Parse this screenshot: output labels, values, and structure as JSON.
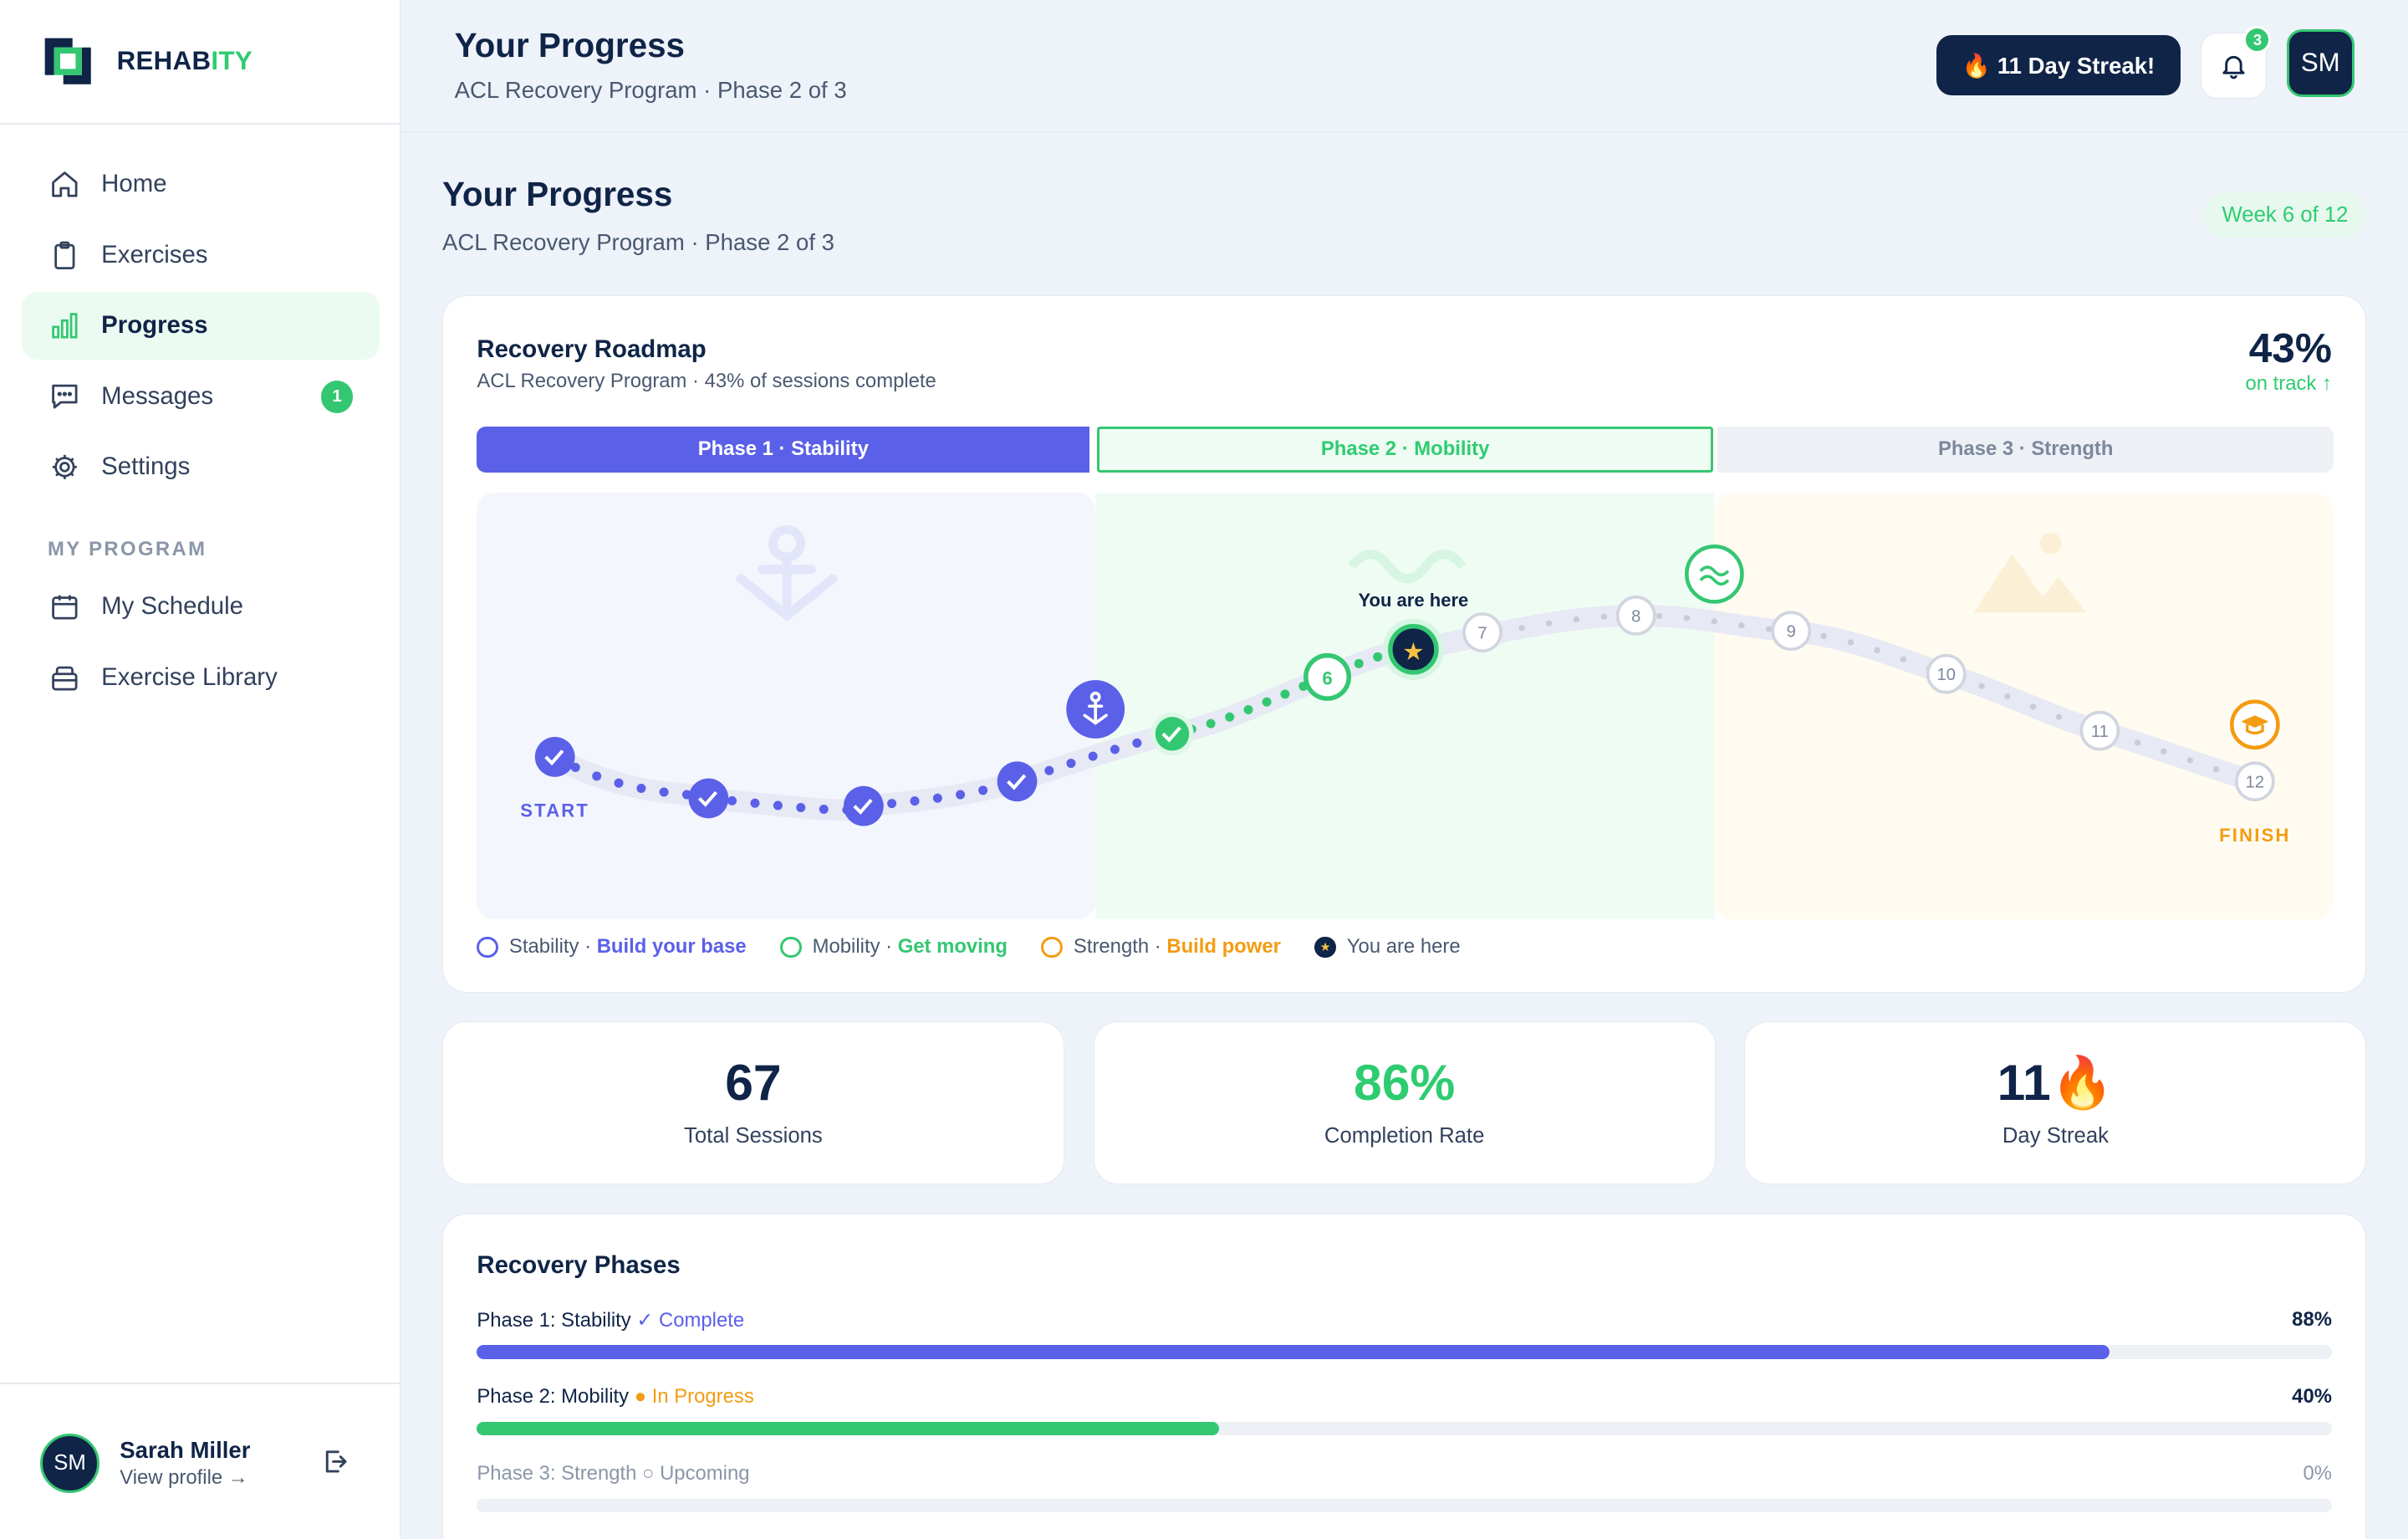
{
  "brand": {
    "name_part1": "REHAB",
    "name_part2": "ITY"
  },
  "sidebar": {
    "items": [
      {
        "label": "Home",
        "icon": "home-icon"
      },
      {
        "label": "Exercises",
        "icon": "clipboard-icon"
      },
      {
        "label": "Progress",
        "icon": "bar-chart-icon",
        "active": true
      },
      {
        "label": "Messages",
        "icon": "message-icon",
        "badge": "1"
      },
      {
        "label": "Settings",
        "icon": "gear-icon"
      }
    ],
    "section_label": "MY PROGRAM",
    "program_items": [
      {
        "label": "My Schedule",
        "icon": "calendar-icon"
      },
      {
        "label": "Exercise Library",
        "icon": "library-icon"
      }
    ],
    "user": {
      "initials": "SM",
      "name": "Sarah Miller",
      "link": "View profile →"
    }
  },
  "header": {
    "title": "Your Progress",
    "subtitle": "ACL Recovery Program · Phase 2 of 3",
    "streak_label": "🔥 11 Day Streak!",
    "notification_count": "3",
    "avatar_initials": "SM"
  },
  "page": {
    "title": "Your Progress",
    "subtitle": "ACL Recovery Program · Phase 2 of 3",
    "week_pill": "Week 6 of 12"
  },
  "roadmap": {
    "title": "Recovery Roadmap",
    "subtitle": "ACL Recovery Program · 43% of sessions complete",
    "percent": "43%",
    "status": "on track ↑",
    "phases": [
      {
        "label": "Phase 1 · Stability"
      },
      {
        "label": "Phase 2 · Mobility"
      },
      {
        "label": "Phase 3 · Strength"
      }
    ],
    "you_are_here": "You are here",
    "start_label": "START",
    "finish_label": "FINISH",
    "upcoming_nodes": [
      "7",
      "8",
      "9",
      "10",
      "11",
      "12"
    ],
    "current_node": "6",
    "legend": [
      {
        "name": "Stability",
        "tagline": "Build your base",
        "color": "#5b60e8"
      },
      {
        "name": "Mobility",
        "tagline": "Get moving",
        "color": "#34c772"
      },
      {
        "name": "Strength",
        "tagline": "Build power",
        "color": "#f39c12"
      },
      {
        "name": "You are here",
        "tagline": "",
        "color": "#0f2447"
      }
    ]
  },
  "stats": [
    {
      "value": "67",
      "label": "Total Sessions",
      "color": "#0f2447"
    },
    {
      "value": "86%",
      "label": "Completion Rate",
      "color": "#2ecc71"
    },
    {
      "value": "11🔥",
      "label": "Day Streak",
      "color": "#0f2447"
    }
  ],
  "recovery_phases": {
    "title": "Recovery Phases",
    "rows": [
      {
        "name": "Phase 1: Stability",
        "status": "✓ Complete",
        "percent_label": "88%",
        "progress": 0.88,
        "color": "#5b60e8",
        "status_color": "#5b60e8"
      },
      {
        "name": "Phase 2: Mobility",
        "status": "● In Progress",
        "percent_label": "40%",
        "progress": 0.4,
        "color": "#34c772",
        "status_color": "#f39c12"
      },
      {
        "name": "Phase 3: Strength",
        "status": "○ Upcoming",
        "percent_label": "0%",
        "progress": 0,
        "color": "#b0b8c6",
        "status_color": "#8b96a9"
      }
    ]
  }
}
